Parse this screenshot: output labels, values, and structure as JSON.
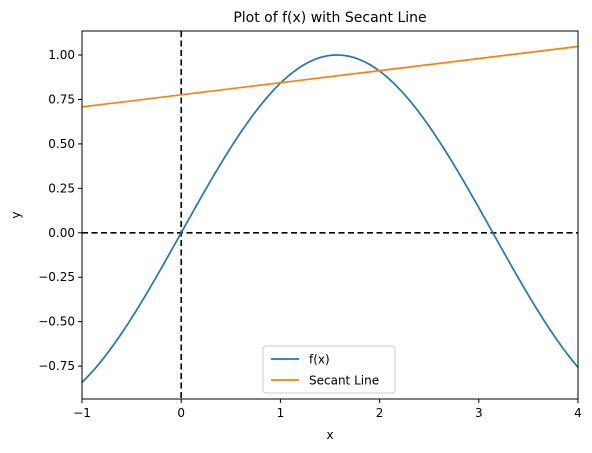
{
  "chart_data": {
    "type": "line",
    "title": "Plot of f(x) with Secant Line",
    "xlabel": "x",
    "ylabel": "y",
    "xlim": [
      -1,
      4
    ],
    "ylim": [
      -0.935,
      1.135
    ],
    "xticks": [
      -1,
      0,
      1,
      2,
      3,
      4
    ],
    "xtick_labels": [
      "−1",
      "0",
      "1",
      "2",
      "3",
      "4"
    ],
    "yticks": [
      -0.75,
      -0.5,
      -0.25,
      0.0,
      0.25,
      0.5,
      0.75,
      1.0
    ],
    "ytick_labels": [
      "−0.75",
      "−0.50",
      "−0.25",
      "0.00",
      "0.25",
      "0.50",
      "0.75",
      "1.00"
    ],
    "grid": false,
    "legend_position": "lower-center",
    "series": [
      {
        "name": "f(x)",
        "color": "#1f77b4",
        "function": "sin",
        "x": [
          -1,
          -0.5,
          0,
          0.5,
          1,
          1.5708,
          2,
          2.5,
          3,
          3.1416,
          3.5,
          4
        ],
        "y": [
          -0.841,
          -0.479,
          0.0,
          0.479,
          0.841,
          1.0,
          0.909,
          0.598,
          0.141,
          0.0,
          -0.351,
          -0.757
        ]
      },
      {
        "name": "Secant Line",
        "color": "#ff7f0e",
        "x": [
          -1,
          4
        ],
        "y": [
          0.708,
          1.048
        ]
      }
    ],
    "reference_lines": [
      {
        "orientation": "horizontal",
        "value": 0,
        "style": "dashed",
        "color": "#000000"
      },
      {
        "orientation": "vertical",
        "value": 0,
        "style": "dashed",
        "color": "#000000"
      }
    ]
  }
}
